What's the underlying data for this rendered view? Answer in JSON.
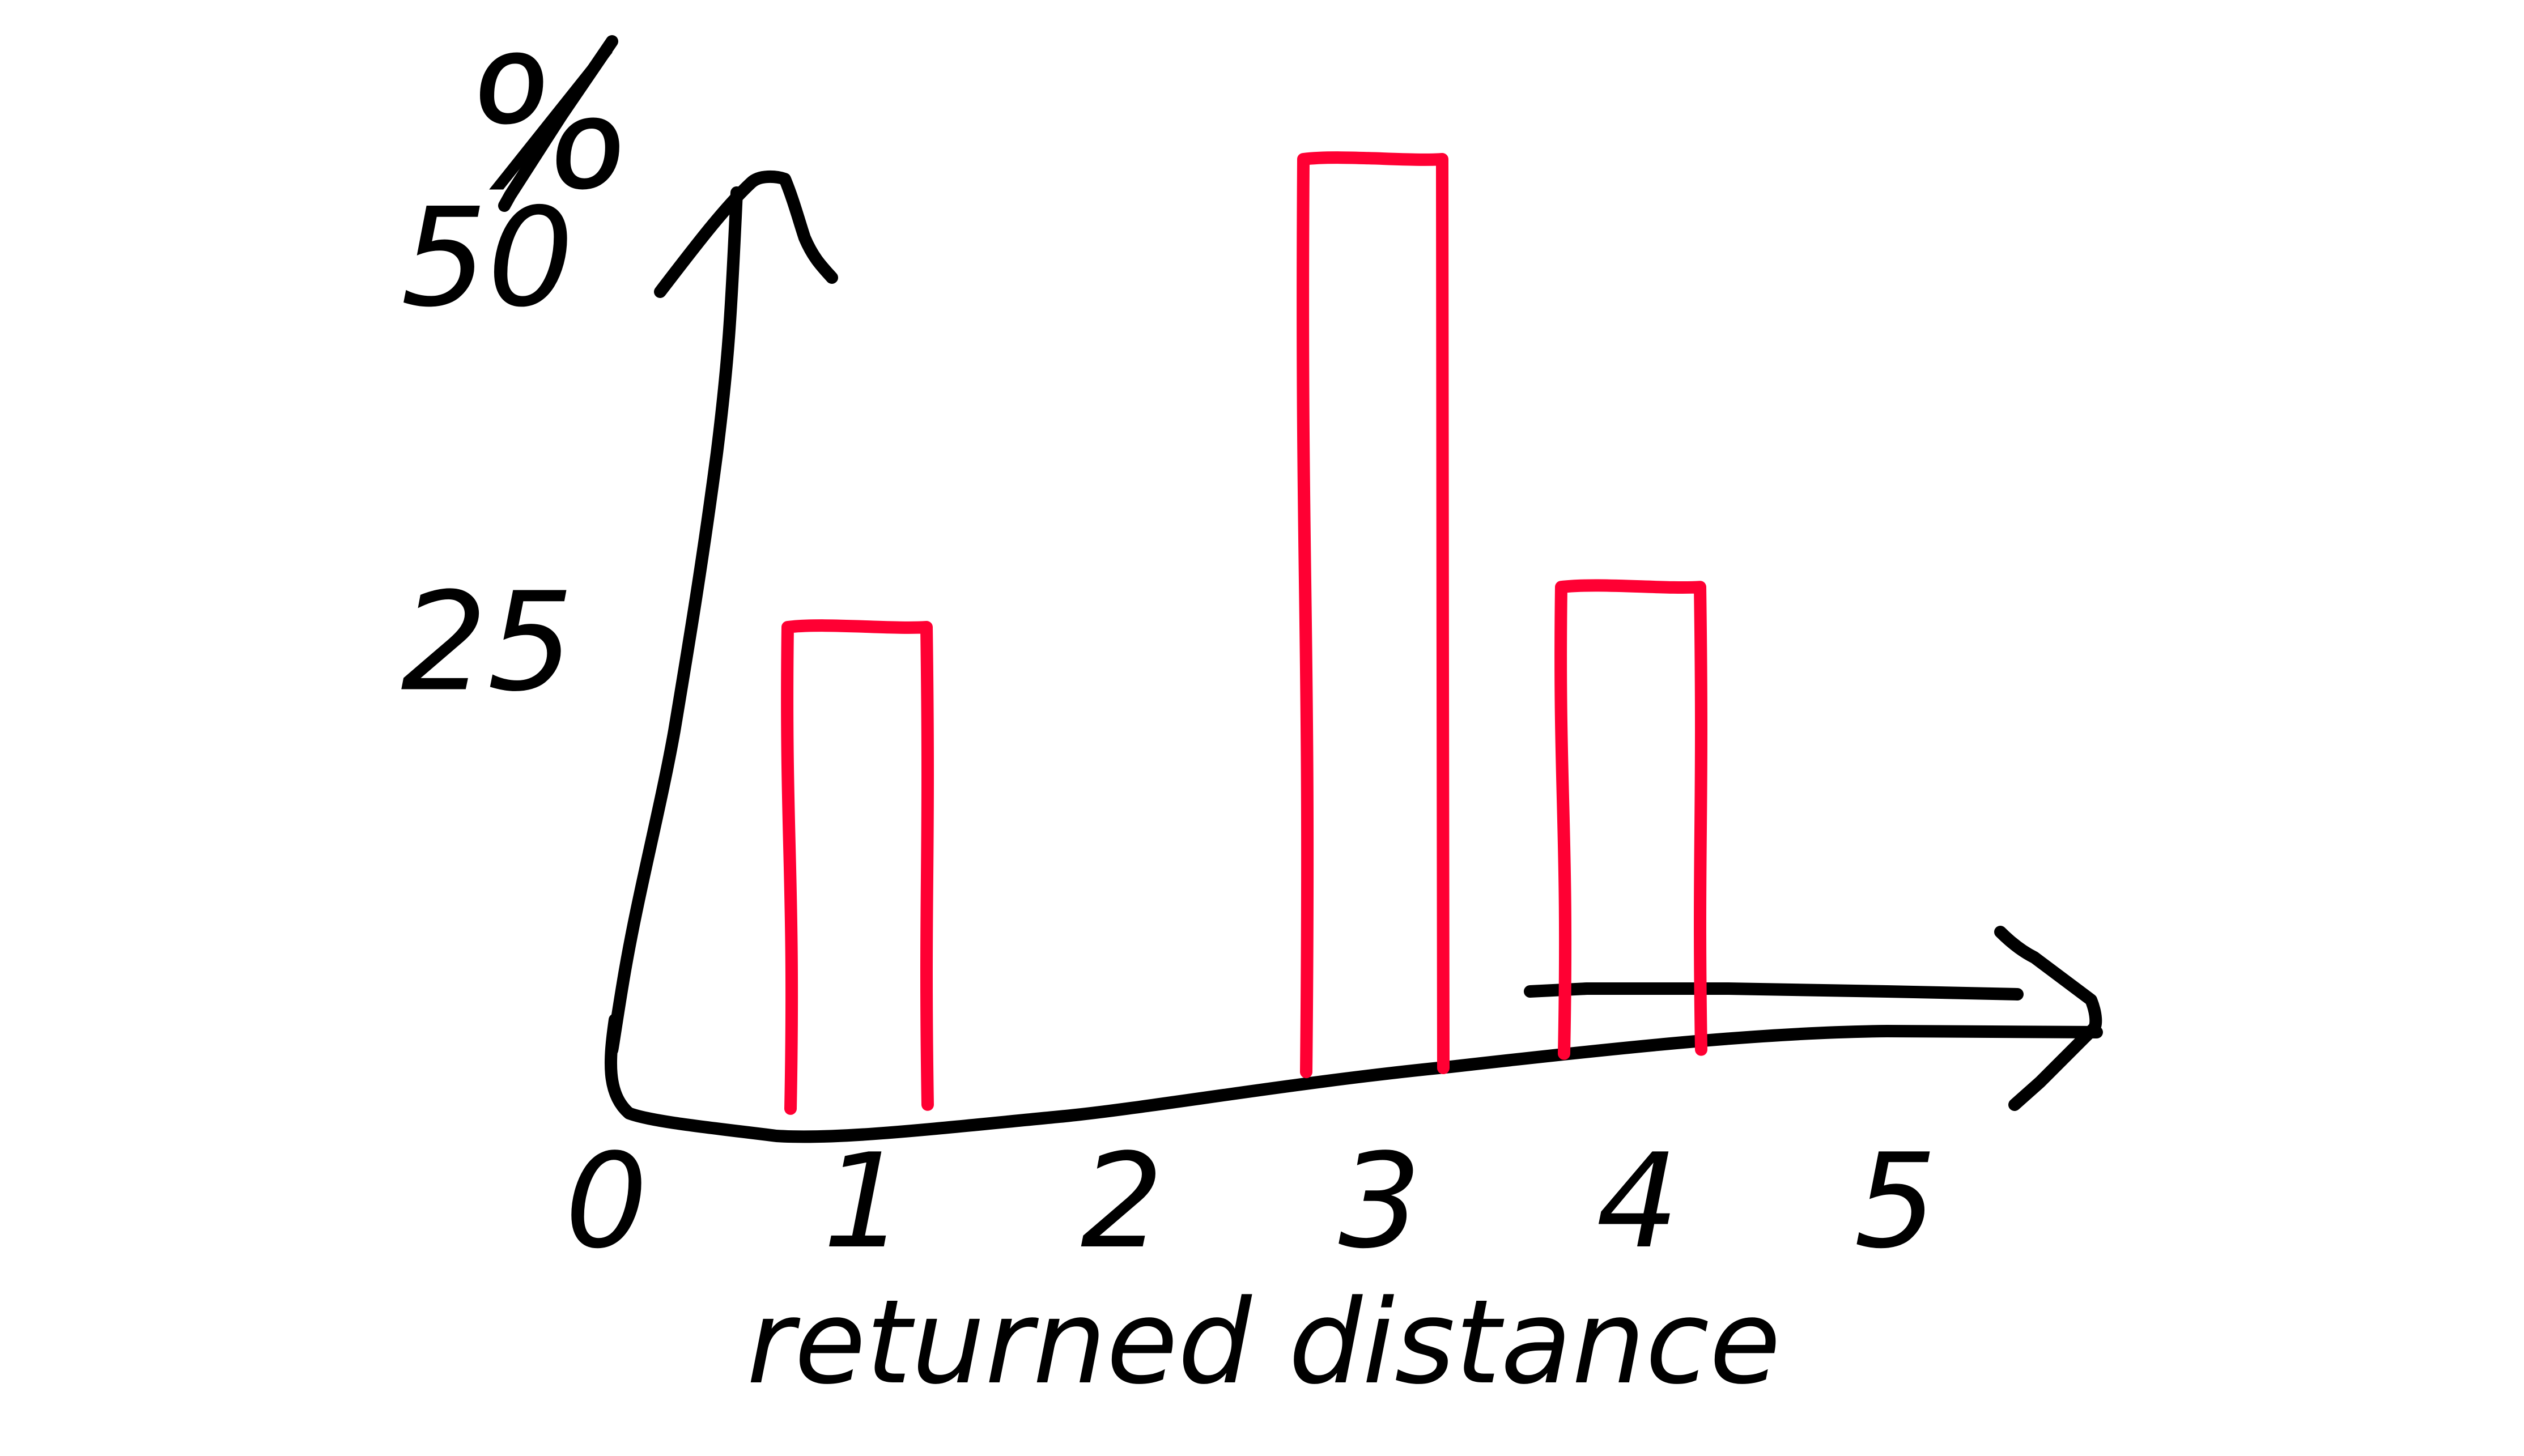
{
  "chart_data": {
    "type": "bar",
    "xlabel": "returned distance",
    "ylabel": "%",
    "categories": [
      "1",
      "2",
      "3",
      "4"
    ],
    "values": [
      30,
      0,
      65,
      33
    ],
    "x_ticks": [
      "0",
      "1",
      "2",
      "3",
      "4",
      "5"
    ],
    "y_ticks": [
      "25",
      "50"
    ],
    "ylim": [
      0,
      80
    ],
    "xlim": [
      0,
      5
    ],
    "grid": false,
    "legend": "none",
    "style": "hand-drawn sketch",
    "colors": {
      "bars": "#ff0033",
      "axes": "#000000",
      "background": "#ffffff"
    }
  }
}
